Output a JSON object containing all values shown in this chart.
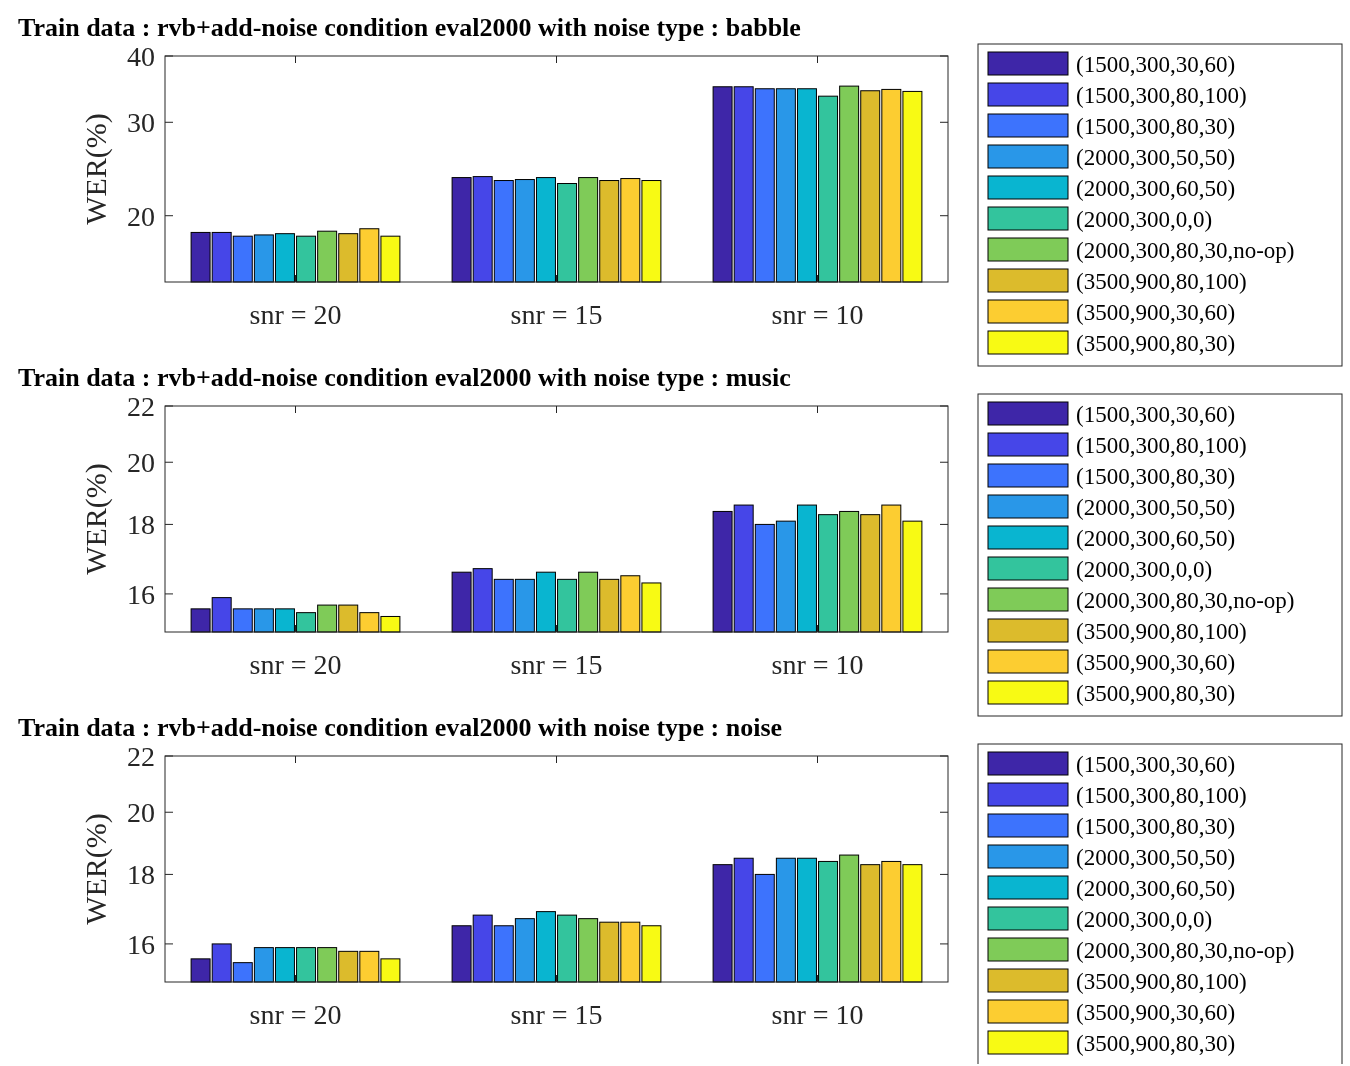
{
  "chart_data": [
    {
      "type": "bar",
      "title": "Train data : rvb+add-noise condition  eval2000 with noise type : babble",
      "ylabel": "WER(%)",
      "categories": [
        "snr = 20",
        "snr = 15",
        "snr = 10"
      ],
      "log": true,
      "ylim": [
        15,
        40
      ],
      "yticks": [
        20,
        30,
        40
      ],
      "legend": "right",
      "series": [
        {
          "name": "(1500,300,30,60)",
          "color": "#3e26a8",
          "values": [
            18.6,
            23.6,
            35.0
          ]
        },
        {
          "name": "(1500,300,80,100)",
          "color": "#4646e8",
          "values": [
            18.6,
            23.7,
            35.0
          ]
        },
        {
          "name": "(1500,300,80,30)",
          "color": "#3d73fd",
          "values": [
            18.3,
            23.3,
            34.7
          ]
        },
        {
          "name": "(2000,300,50,50)",
          "color": "#2997e8",
          "values": [
            18.4,
            23.4,
            34.7
          ]
        },
        {
          "name": "(2000,300,60,50)",
          "color": "#09b5d0",
          "values": [
            18.5,
            23.6,
            34.7
          ]
        },
        {
          "name": "(2000,300,0,0)",
          "color": "#33c49d",
          "values": [
            18.3,
            23.0,
            33.6
          ]
        },
        {
          "name": "(2000,300,80,30,no-op)",
          "color": "#7fcb58",
          "values": [
            18.7,
            23.6,
            35.1
          ]
        },
        {
          "name": "(3500,900,80,100)",
          "color": "#dcbb2c",
          "values": [
            18.5,
            23.3,
            34.4
          ]
        },
        {
          "name": "(3500,900,30,60)",
          "color": "#fccd31",
          "values": [
            18.9,
            23.5,
            34.6
          ]
        },
        {
          "name": "(3500,900,80,30)",
          "color": "#f8fa14",
          "values": [
            18.3,
            23.3,
            34.3
          ]
        }
      ]
    },
    {
      "type": "bar",
      "title": "Train data : rvb+add-noise condition  eval2000 with noise type : music",
      "ylabel": "WER(%)",
      "categories": [
        "snr = 20",
        "snr = 15",
        "snr = 10"
      ],
      "log": true,
      "ylim": [
        15,
        22
      ],
      "yticks": [
        16,
        18,
        20,
        22
      ],
      "legend": "right",
      "series": [
        {
          "name": "(1500,300,30,60)",
          "color": "#3e26a8",
          "values": [
            15.6,
            16.6,
            18.4
          ]
        },
        {
          "name": "(1500,300,80,100)",
          "color": "#4646e8",
          "values": [
            15.9,
            16.7,
            18.6
          ]
        },
        {
          "name": "(1500,300,80,30)",
          "color": "#3d73fd",
          "values": [
            15.6,
            16.4,
            18.0
          ]
        },
        {
          "name": "(2000,300,50,50)",
          "color": "#2997e8",
          "values": [
            15.6,
            16.4,
            18.1
          ]
        },
        {
          "name": "(2000,300,60,50)",
          "color": "#09b5d0",
          "values": [
            15.6,
            16.6,
            18.6
          ]
        },
        {
          "name": "(2000,300,0,0)",
          "color": "#33c49d",
          "values": [
            15.5,
            16.4,
            18.3
          ]
        },
        {
          "name": "(2000,300,80,30,no-op)",
          "color": "#7fcb58",
          "values": [
            15.7,
            16.6,
            18.4
          ]
        },
        {
          "name": "(3500,900,80,100)",
          "color": "#dcbb2c",
          "values": [
            15.7,
            16.4,
            18.3
          ]
        },
        {
          "name": "(3500,900,30,60)",
          "color": "#fccd31",
          "values": [
            15.5,
            16.5,
            18.6
          ]
        },
        {
          "name": "(3500,900,80,30)",
          "color": "#f8fa14",
          "values": [
            15.4,
            16.3,
            18.1
          ]
        }
      ]
    },
    {
      "type": "bar",
      "title": "Train data : rvb+add-noise condition  eval2000 with noise type : noise",
      "ylabel": "WER(%)",
      "categories": [
        "snr = 20",
        "snr = 15",
        "snr = 10"
      ],
      "log": true,
      "ylim": [
        15,
        22
      ],
      "yticks": [
        16,
        18,
        20,
        22
      ],
      "legend": "right",
      "series": [
        {
          "name": "(1500,300,30,60)",
          "color": "#3e26a8",
          "values": [
            15.6,
            16.5,
            18.3
          ]
        },
        {
          "name": "(1500,300,80,100)",
          "color": "#4646e8",
          "values": [
            16.0,
            16.8,
            18.5
          ]
        },
        {
          "name": "(1500,300,80,30)",
          "color": "#3d73fd",
          "values": [
            15.5,
            16.5,
            18.0
          ]
        },
        {
          "name": "(2000,300,50,50)",
          "color": "#2997e8",
          "values": [
            15.9,
            16.7,
            18.5
          ]
        },
        {
          "name": "(2000,300,60,50)",
          "color": "#09b5d0",
          "values": [
            15.9,
            16.9,
            18.5
          ]
        },
        {
          "name": "(2000,300,0,0)",
          "color": "#33c49d",
          "values": [
            15.9,
            16.8,
            18.4
          ]
        },
        {
          "name": "(2000,300,80,30,no-op)",
          "color": "#7fcb58",
          "values": [
            15.9,
            16.7,
            18.6
          ]
        },
        {
          "name": "(3500,900,80,100)",
          "color": "#dcbb2c",
          "values": [
            15.8,
            16.6,
            18.3
          ]
        },
        {
          "name": "(3500,900,30,60)",
          "color": "#fccd31",
          "values": [
            15.8,
            16.6,
            18.4
          ]
        },
        {
          "name": "(3500,900,80,30)",
          "color": "#f8fa14",
          "values": [
            15.6,
            16.5,
            18.3
          ]
        }
      ]
    }
  ]
}
